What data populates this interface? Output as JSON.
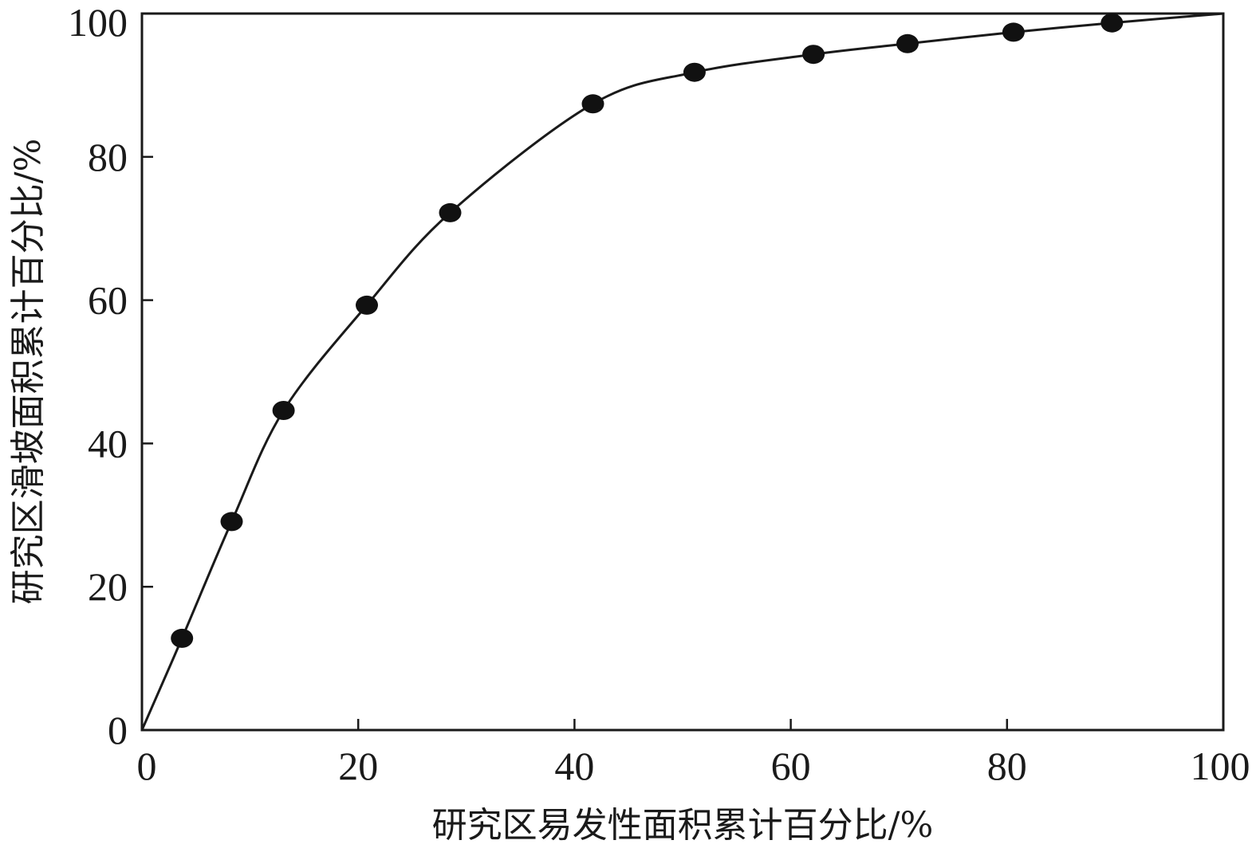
{
  "chart_data": {
    "type": "line",
    "title": "",
    "xlabel": "研究区易发性面积累计百分比/%",
    "ylabel": "研究区滑坡面积累计百分比/%",
    "xlim": [
      0,
      100
    ],
    "ylim": [
      0,
      100
    ],
    "x_ticks": [
      "0",
      "20",
      "40",
      "60",
      "80",
      "100"
    ],
    "y_ticks": [
      "0",
      "20",
      "40",
      "60",
      "80",
      "100"
    ],
    "grid": false,
    "legend": "none",
    "series": [
      {
        "x": [
          3.7,
          8.3,
          13.1,
          20.8,
          28.5,
          41.7,
          51.1,
          62.1,
          70.8,
          80.6,
          89.7
        ],
        "y": [
          12.8,
          29.1,
          44.6,
          59.3,
          72.2,
          87.4,
          91.8,
          94.3,
          95.8,
          97.4,
          98.7
        ],
        "curve": [
          [
            0,
            0
          ],
          [
            3.7,
            12.8
          ],
          [
            8.3,
            29.1
          ],
          [
            13.1,
            44.6
          ],
          [
            20.8,
            59.3
          ],
          [
            28.5,
            72.2
          ],
          [
            41.7,
            87.4
          ],
          [
            51.1,
            91.8
          ],
          [
            62.1,
            94.3
          ],
          [
            70.8,
            95.8
          ],
          [
            80.6,
            97.4
          ],
          [
            89.7,
            98.7
          ],
          [
            100,
            100
          ]
        ]
      }
    ],
    "colors": {
      "line": "#1a1a1a",
      "marker": "#111111",
      "axis": "#1a1a1a"
    }
  }
}
